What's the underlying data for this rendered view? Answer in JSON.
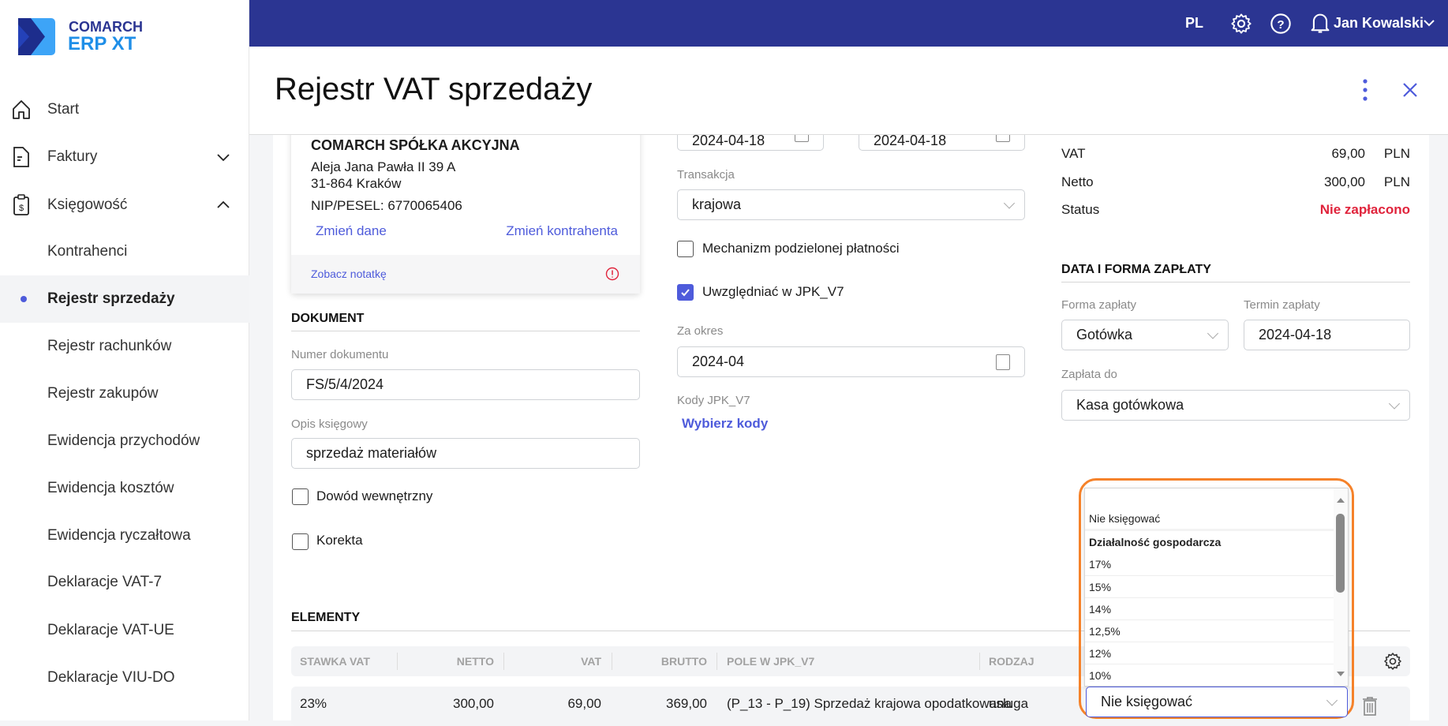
{
  "app": {
    "brand_line1": "COMARCH",
    "brand_line2": "ERP XT"
  },
  "topbar": {
    "language": "PL",
    "user": "Jan Kowalski"
  },
  "sidebar": {
    "items": [
      {
        "label": "Start"
      },
      {
        "label": "Faktury"
      },
      {
        "label": "Księgowość"
      },
      {
        "label": "Kontrahenci"
      },
      {
        "label": "Rejestr sprzedaży"
      },
      {
        "label": "Rejestr rachunków"
      },
      {
        "label": "Rejestr zakupów"
      },
      {
        "label": "Ewidencja przychodów"
      },
      {
        "label": "Ewidencja kosztów"
      },
      {
        "label": "Ewidencja ryczałtowa"
      },
      {
        "label": "Deklaracje VAT-7"
      },
      {
        "label": "Deklaracje VAT-UE"
      },
      {
        "label": "Deklaracje VIU-DO"
      }
    ]
  },
  "header": {
    "title": "Rejestr VAT sprzedaży"
  },
  "contractor": {
    "name": "COMARCH SPÓŁKA AKCYJNA",
    "street": "Aleja Jana Pawła II 39 A",
    "city": "31-864 Kraków",
    "nip": "NIP/PESEL: 6770065406",
    "change_data": "Zmień dane",
    "change_contractor": "Zmień kontrahenta",
    "see_note": "Zobacz notatkę"
  },
  "document": {
    "heading": "DOKUMENT",
    "number_label": "Numer dokumentu",
    "number": "FS/5/4/2024",
    "desc_label": "Opis księgowy",
    "desc": "sprzedaż materiałów",
    "internal_label": "Dowód wewnętrzny",
    "internal": false,
    "correction_label": "Korekta",
    "correction": false
  },
  "middle": {
    "date1": "2024-04-18",
    "date2": "2024-04-18",
    "transaction_label": "Transakcja",
    "transaction": "krajowa",
    "split_label": "Mechanizm podzielonej płatności",
    "split": false,
    "jpk_label": "Uwzględniać w JPK_V7",
    "jpk": true,
    "period_label": "Za okres",
    "period": "2024-04",
    "codes_label": "Kody JPK_V7",
    "codes_link": "Wybierz kody"
  },
  "summary": {
    "rows": [
      {
        "label": "VAT",
        "value": "69,00",
        "currency": "PLN"
      },
      {
        "label": "Netto",
        "value": "300,00",
        "currency": "PLN"
      }
    ],
    "status_label": "Status",
    "status": "Nie zapłacono",
    "status_color": "#e0243c"
  },
  "payment": {
    "heading": "DATA I FORMA ZAPŁATY",
    "form_label": "Forma zapłaty",
    "form": "Gotówka",
    "due_label": "Termin zapłaty",
    "due": "2024-04-18",
    "to_label": "Zapłata do",
    "to": "Kasa gotówkowa"
  },
  "elements": {
    "heading": "ELEMENTY",
    "columns": [
      "STAWKA VAT",
      "NETTO",
      "VAT",
      "BRUTTO",
      "POLE W JPK_V7",
      "RODZAJ"
    ],
    "rows": [
      {
        "rate": "23%",
        "netto": "300,00",
        "vat": "69,00",
        "brutto": "369,00",
        "field": "(P_13 - P_19) Sprzedaż krajowa opodatkowana",
        "type": "usługa",
        "posting": "Nie księgować"
      }
    ]
  },
  "dropdown": {
    "options": [
      "Nie księgować"
    ],
    "group": "Działalność gospodarcza",
    "group_options": [
      "17%",
      "15%",
      "14%",
      "12,5%",
      "12%",
      "10%"
    ]
  },
  "colors": {
    "topbar": "#2b3592",
    "accent": "#4e5bdb",
    "highlight": "#f5822a"
  }
}
